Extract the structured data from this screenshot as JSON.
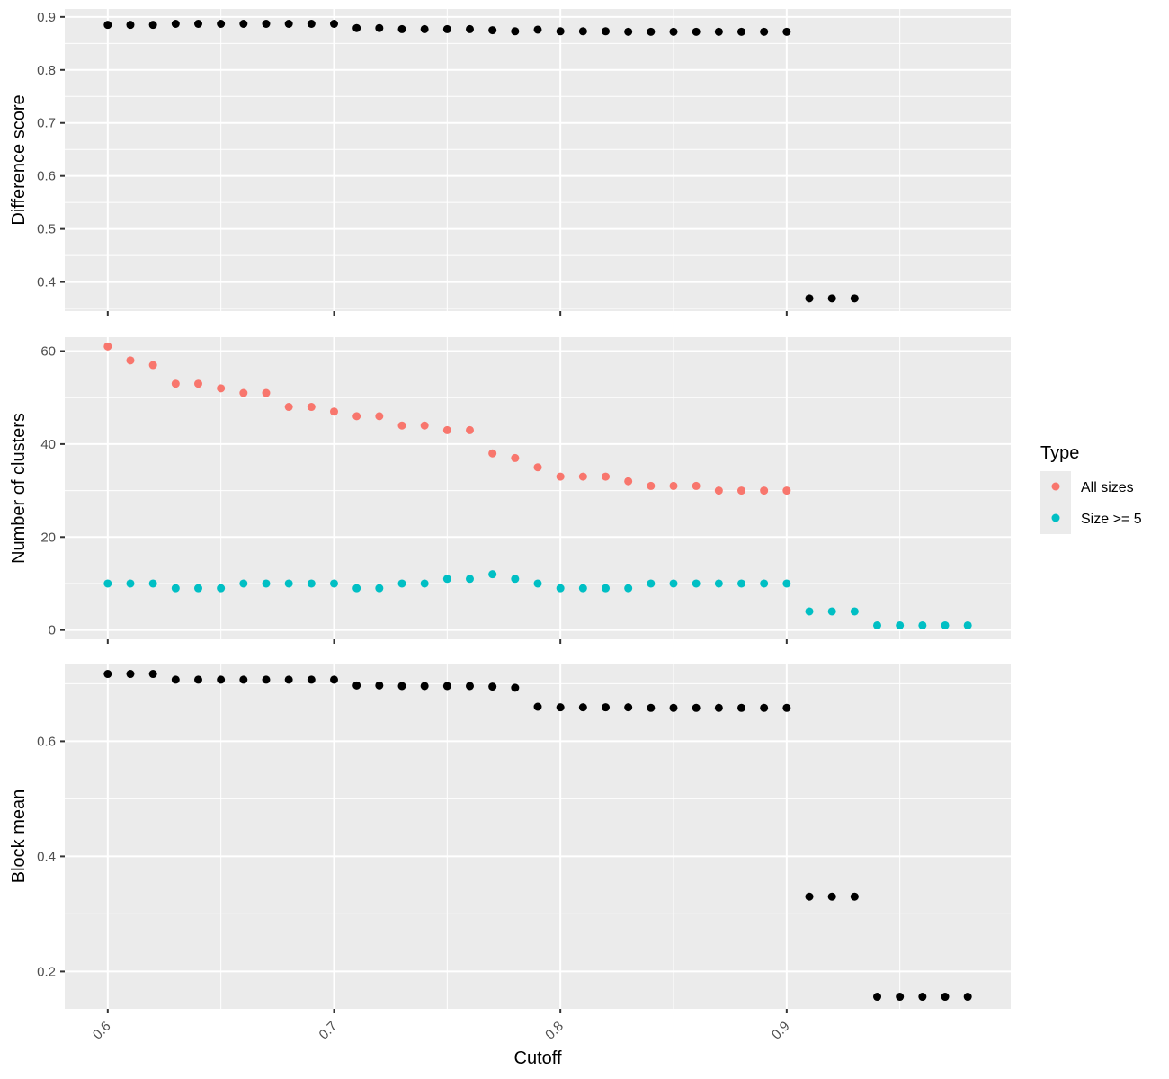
{
  "chart_data": [
    {
      "type": "scatter",
      "ylabel": "Difference score",
      "ylim": [
        0.345,
        0.915
      ],
      "yticks": [
        0.4,
        0.5,
        0.6,
        0.7,
        0.8,
        0.9
      ],
      "ytick_labels": [
        "0.4",
        "0.5",
        "0.6",
        "0.7",
        "0.8",
        "0.9"
      ],
      "grid": true,
      "series": [
        {
          "color": "#000000",
          "x": [
            0.6,
            0.61,
            0.62,
            0.63,
            0.64,
            0.65,
            0.66,
            0.67,
            0.68,
            0.69,
            0.7,
            0.71,
            0.72,
            0.73,
            0.74,
            0.75,
            0.76,
            0.77,
            0.78,
            0.79,
            0.8,
            0.81,
            0.82,
            0.83,
            0.84,
            0.85,
            0.86,
            0.87,
            0.88,
            0.89,
            0.9,
            0.91,
            0.92,
            0.93
          ],
          "y": [
            0.885,
            0.885,
            0.885,
            0.887,
            0.887,
            0.887,
            0.887,
            0.887,
            0.887,
            0.887,
            0.887,
            0.879,
            0.879,
            0.877,
            0.877,
            0.877,
            0.877,
            0.875,
            0.873,
            0.876,
            0.873,
            0.873,
            0.873,
            0.872,
            0.872,
            0.872,
            0.872,
            0.872,
            0.872,
            0.872,
            0.872,
            0.369,
            0.369,
            0.369
          ]
        }
      ]
    },
    {
      "type": "scatter",
      "ylabel": "Number of clusters",
      "ylim": [
        -2,
        63
      ],
      "yticks": [
        0,
        20,
        40,
        60
      ],
      "ytick_labels": [
        "0",
        "20",
        "40",
        "60"
      ],
      "grid": true,
      "series": [
        {
          "name": "All sizes",
          "color": "#f8766d",
          "x": [
            0.6,
            0.61,
            0.62,
            0.63,
            0.64,
            0.65,
            0.66,
            0.67,
            0.68,
            0.69,
            0.7,
            0.71,
            0.72,
            0.73,
            0.74,
            0.75,
            0.76,
            0.77,
            0.78,
            0.79,
            0.8,
            0.81,
            0.82,
            0.83,
            0.84,
            0.85,
            0.86,
            0.87,
            0.88,
            0.89,
            0.9
          ],
          "y": [
            61,
            58,
            57,
            53,
            53,
            52,
            51,
            51,
            48,
            48,
            47,
            46,
            46,
            44,
            44,
            43,
            43,
            38,
            37,
            35,
            33,
            33,
            33,
            32,
            31,
            31,
            31,
            30,
            30,
            30,
            30
          ]
        },
        {
          "name": "Size >= 5",
          "color": "#00bfc4",
          "x": [
            0.6,
            0.61,
            0.62,
            0.63,
            0.64,
            0.65,
            0.66,
            0.67,
            0.68,
            0.69,
            0.7,
            0.71,
            0.72,
            0.73,
            0.74,
            0.75,
            0.76,
            0.77,
            0.78,
            0.79,
            0.8,
            0.81,
            0.82,
            0.83,
            0.84,
            0.85,
            0.86,
            0.87,
            0.88,
            0.89,
            0.9,
            0.91,
            0.92,
            0.93,
            0.94,
            0.95,
            0.96,
            0.97,
            0.98
          ],
          "y": [
            10,
            10,
            10,
            9,
            9,
            9,
            10,
            10,
            10,
            10,
            10,
            9,
            9,
            10,
            10,
            11,
            11,
            12,
            11,
            10,
            9,
            9,
            9,
            9,
            10,
            10,
            10,
            10,
            10,
            10,
            10,
            4,
            4,
            4,
            1,
            1,
            1,
            1,
            1
          ]
        }
      ]
    },
    {
      "type": "scatter",
      "ylabel": "Block mean",
      "ylim": [
        0.135,
        0.735
      ],
      "yticks": [
        0.2,
        0.4,
        0.6
      ],
      "ytick_labels": [
        "0.2",
        "0.4",
        "0.6"
      ],
      "grid": true,
      "series": [
        {
          "color": "#000000",
          "x": [
            0.6,
            0.61,
            0.62,
            0.63,
            0.64,
            0.65,
            0.66,
            0.67,
            0.68,
            0.69,
            0.7,
            0.71,
            0.72,
            0.73,
            0.74,
            0.75,
            0.76,
            0.77,
            0.78,
            0.79,
            0.8,
            0.81,
            0.82,
            0.83,
            0.84,
            0.85,
            0.86,
            0.87,
            0.88,
            0.89,
            0.9,
            0.91,
            0.92,
            0.93,
            0.94,
            0.95,
            0.96,
            0.97,
            0.98
          ],
          "y": [
            0.717,
            0.717,
            0.717,
            0.707,
            0.707,
            0.707,
            0.707,
            0.707,
            0.707,
            0.707,
            0.707,
            0.697,
            0.697,
            0.696,
            0.696,
            0.696,
            0.696,
            0.695,
            0.693,
            0.66,
            0.659,
            0.659,
            0.659,
            0.659,
            0.658,
            0.658,
            0.658,
            0.658,
            0.658,
            0.658,
            0.658,
            0.33,
            0.33,
            0.33,
            0.156,
            0.156,
            0.156,
            0.156,
            0.156
          ]
        }
      ]
    }
  ],
  "x_axis": {
    "label": "Cutoff",
    "xlim": [
      0.581,
      0.999
    ],
    "ticks": [
      0.6,
      0.7,
      0.8,
      0.9
    ],
    "tick_labels": [
      "0.6",
      "0.7",
      "0.8",
      "0.9"
    ]
  },
  "legend": {
    "title": "Type",
    "position": "right",
    "items": [
      {
        "label": "All sizes",
        "color": "#f8766d"
      },
      {
        "label": "Size >= 5",
        "color": "#00bfc4"
      }
    ]
  }
}
